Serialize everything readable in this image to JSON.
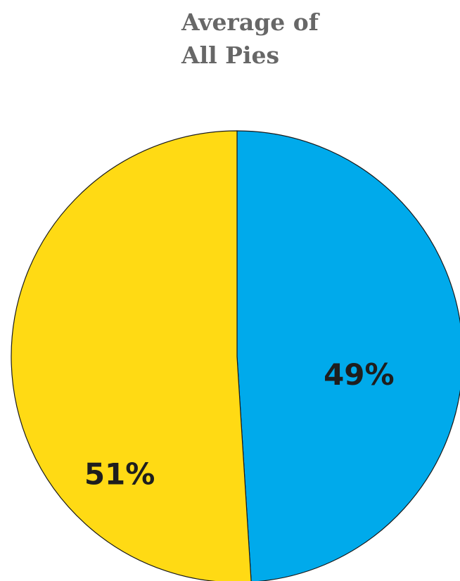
{
  "chart_data": {
    "type": "pie",
    "title_lines": [
      "Average of",
      "All Pies"
    ],
    "slices": [
      {
        "value": 49,
        "label": "49%",
        "color": "#00AAEB"
      },
      {
        "value": 51,
        "label": "51%",
        "color": "#FFDA14"
      }
    ]
  }
}
